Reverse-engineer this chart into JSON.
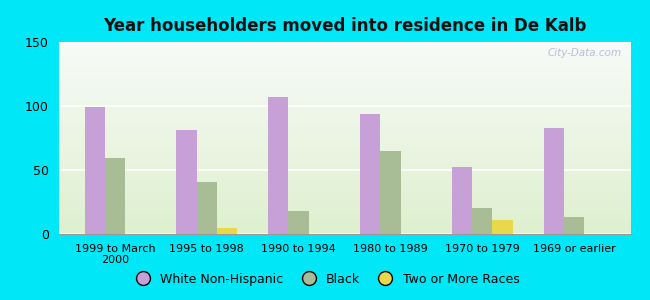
{
  "title": "Year householders moved into residence in De Kalb",
  "categories": [
    "1999 to March\n2000",
    "1995 to 1998",
    "1990 to 1994",
    "1980 to 1989",
    "1970 to 1979",
    "1969 or earlier"
  ],
  "white_non_hispanic": [
    99,
    81,
    107,
    94,
    52,
    83
  ],
  "black": [
    59,
    41,
    18,
    65,
    20,
    13
  ],
  "two_or_more_races": [
    0,
    5,
    0,
    0,
    11,
    0
  ],
  "colors": {
    "white_non_hispanic": "#c8a0d8",
    "black": "#a8bc96",
    "two_or_more_races": "#e8d84a"
  },
  "background_outer": "#00e8f8",
  "ylim": [
    0,
    150
  ],
  "yticks": [
    0,
    50,
    100,
    150
  ],
  "bar_width": 0.22,
  "legend_labels": [
    "White Non-Hispanic",
    "Black",
    "Two or More Races"
  ],
  "watermark": "City-Data.com"
}
